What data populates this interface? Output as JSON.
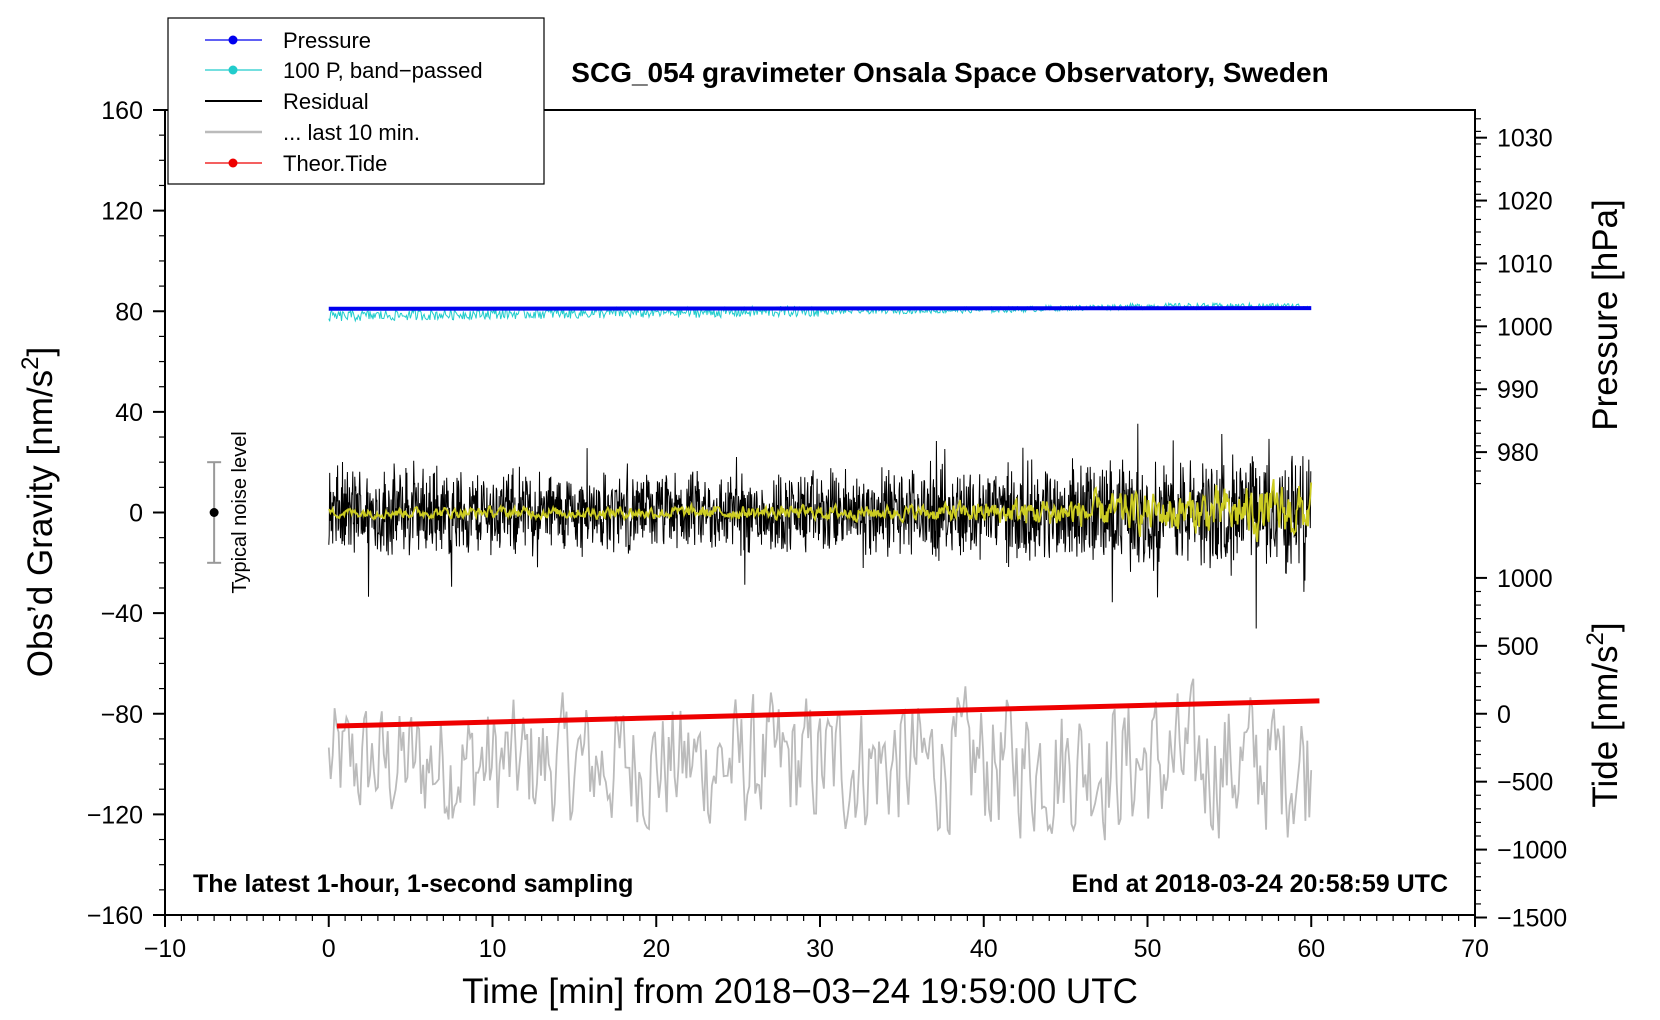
{
  "chart_data": {
    "type": "line",
    "title": "SCG_054 gravimeter Onsala Space Observatory, Sweden",
    "xlabel": "Time [min] from 2018−03−24 19:59:00 UTC",
    "ylabel_left": "Obs’d Gravity [nm/s",
    "ylabel_right_pressure": "Pressure [hPa]",
    "ylabel_right_tide": "Tide [nm/s",
    "unit_superscript": "2",
    "unit_close": "]",
    "xlim": [
      -10,
      70
    ],
    "ylim": [
      -160,
      160
    ],
    "x_ticks": [
      -10,
      0,
      10,
      20,
      30,
      40,
      50,
      60,
      70
    ],
    "x_tick_labels": [
      "−10",
      "0",
      "10",
      "20",
      "30",
      "40",
      "50",
      "60",
      "70"
    ],
    "y_ticks": [
      -160,
      -120,
      -80,
      -40,
      0,
      40,
      80,
      120,
      160
    ],
    "y_tick_labels": [
      "−160",
      "−120",
      "−80",
      "−40",
      "0",
      "40",
      "80",
      "120",
      "160"
    ],
    "pressure_ticks": [
      1030,
      1020,
      1010,
      1000,
      990,
      980
    ],
    "pressure_tick_labels": [
      "1030",
      "1020",
      "1010",
      "1000",
      "990",
      "980"
    ],
    "pressure_mapping": {
      "gravity_at_1000hPa": 74,
      "gravity_per_hPa": 2.5
    },
    "tide_ticks": [
      1000,
      500,
      0,
      -500,
      -1000,
      -1500
    ],
    "tide_tick_labels": [
      "1000",
      "500",
      "0",
      "−500",
      "−1000",
      "−1500"
    ],
    "tide_mapping": {
      "gravity_at_0": -80,
      "gravity_per_nm_s2": 0.054
    },
    "legend": {
      "position": "top-left",
      "entries": [
        {
          "label": "Pressure",
          "color": "#0000ee",
          "marker": true
        },
        {
          "label": "100 P, band−passed",
          "color": "#22cccc",
          "marker": true
        },
        {
          "label": "Residual",
          "color": "#000000",
          "marker": false
        },
        {
          "label": "... last 10 min.",
          "color": "#bbbbbb",
          "marker": false
        },
        {
          "label": "Theor.Tide",
          "color": "#ee0000",
          "marker": true
        }
      ]
    },
    "series": [
      {
        "name": "Pressure",
        "color": "#0000ee",
        "axis": "pressure",
        "x_range": [
          0,
          60
        ],
        "values": [
          1002.8,
          1002.9
        ]
      },
      {
        "name": "100 P, band−passed",
        "color": "#22cccc",
        "axis": "gravity",
        "x": [
          0,
          10,
          20,
          30,
          40,
          50,
          60
        ],
        "values": [
          78,
          79,
          79.5,
          80,
          80.5,
          82,
          82
        ]
      },
      {
        "name": "Residual",
        "color": "#000000",
        "axis": "gravity",
        "x_range": [
          0,
          60
        ],
        "mean": 0,
        "envelope_x": [
          0,
          20,
          40,
          60
        ],
        "envelope_amplitude": [
          22,
          18,
          22,
          28
        ]
      },
      {
        "name": "Residual smoothed",
        "color": "#cccc22",
        "axis": "gravity",
        "x_range": [
          0,
          60
        ],
        "mean": 0,
        "envelope_x": [
          0,
          35,
          60
        ],
        "envelope_amplitude": [
          2,
          3,
          12
        ]
      },
      {
        "name": "... last 10 min.",
        "color": "#bbbbbb",
        "axis": "gravity",
        "x_range": [
          0,
          60
        ],
        "mean": -100,
        "envelope_x": [
          0,
          60
        ],
        "envelope_amplitude": [
          25,
          30
        ]
      },
      {
        "name": "Theor.Tide",
        "color": "#ee0000",
        "axis": "tide",
        "x": [
          0.5,
          60.5
        ],
        "values": [
          -90,
          95
        ]
      }
    ],
    "noise_bar": {
      "x": -7,
      "center": 0,
      "half_range": 20,
      "label": "Typical noise level"
    },
    "annotations": {
      "bottom_left": "The latest 1-hour, 1-second sampling",
      "bottom_right": "End at 2018-03-24 20:58:59 UTC"
    }
  }
}
